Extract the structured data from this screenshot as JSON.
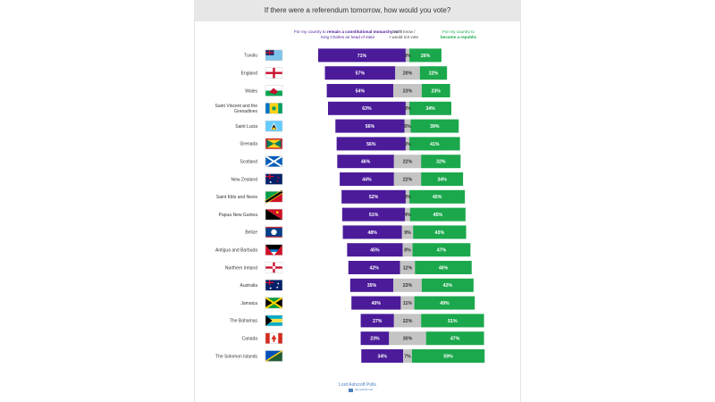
{
  "title": "If there were a referendum tomorrow, how would you vote?",
  "legend": {
    "remain_prefix": "For my country to ",
    "remain_bold": "remain a constitutional monarchy",
    "remain_suffix": " with King Charles as head of state",
    "dont_know_line1": "Don't know /",
    "dont_know_line2": "I would not vote",
    "republic_prefix": "For my country to",
    "republic_bold": "become a republic"
  },
  "colors": {
    "remain": "#4b1b9a",
    "dont_know": "#c4c4c4",
    "republic": "#1ba84c"
  },
  "source": {
    "label": "Lord Ashcroft Polls",
    "sub": "@LordAshcroft"
  },
  "chart_data": {
    "type": "bar",
    "orientation": "horizontal",
    "stacked": "diverging",
    "title": "If there were a referendum tomorrow, how would you vote?",
    "categories": [
      "Tuvalu",
      "England",
      "Wales",
      "Saint Vincent and the Grenadines",
      "Saint Lucia",
      "Grenada",
      "Scotland",
      "New Zealand",
      "Saint Kitts and Nevis",
      "Papua New Guinea",
      "Belize",
      "Antigua and Barbuda",
      "Northern Ireland",
      "Australia",
      "Jamaica",
      "The Bahamas",
      "Canada",
      "The Solomon Islands"
    ],
    "series": [
      {
        "name": "For my country to remain a constitutional monarchy with King Charles as head of state",
        "values": [
          71,
          57,
          54,
          63,
          56,
          56,
          46,
          44,
          52,
          51,
          48,
          45,
          42,
          35,
          40,
          27,
          23,
          34
        ]
      },
      {
        "name": "Don't know / I would not vote",
        "values": [
          3,
          20,
          23,
          3,
          5,
          3,
          22,
          22,
          3,
          4,
          9,
          8,
          12,
          23,
          11,
          22,
          30,
          7
        ]
      },
      {
        "name": "For my country to become a republic",
        "values": [
          26,
          22,
          23,
          34,
          39,
          41,
          32,
          34,
          45,
          45,
          43,
          47,
          46,
          42,
          49,
          51,
          47,
          59
        ]
      }
    ],
    "value_labels": {
      "remain": [
        "71%",
        "57%",
        "54%",
        "63%",
        "56%",
        "56%",
        "46%",
        "44%",
        "52%",
        "51%",
        "48%",
        "45%",
        "42%",
        "35%",
        "40%",
        "27%",
        "23%",
        "34%"
      ],
      "dont_know": [
        "3%",
        "20%",
        "23%",
        "3%",
        "5%",
        "3%",
        "22%",
        "22%",
        "3%",
        "4%",
        "9%",
        "8%",
        "12%",
        "23%",
        "11%",
        "22%",
        "30%",
        "7%"
      ],
      "republic": [
        "26%",
        "22%",
        "23%",
        "34%",
        "39%",
        "41%",
        "32%",
        "34%",
        "45%",
        "45%",
        "43%",
        "47%",
        "46%",
        "42%",
        "49%",
        "51%",
        "47%",
        "59%"
      ]
    },
    "flags": [
      "tuvalu-flag-icon",
      "england-flag-icon",
      "wales-flag-icon",
      "saint-vincent-flag-icon",
      "saint-lucia-flag-icon",
      "grenada-flag-icon",
      "scotland-flag-icon",
      "new-zealand-flag-icon",
      "saint-kitts-flag-icon",
      "papua-new-guinea-flag-icon",
      "belize-flag-icon",
      "antigua-flag-icon",
      "northern-ireland-flag-icon",
      "australia-flag-icon",
      "jamaica-flag-icon",
      "bahamas-flag-icon",
      "canada-flag-icon",
      "solomon-islands-flag-icon"
    ]
  }
}
